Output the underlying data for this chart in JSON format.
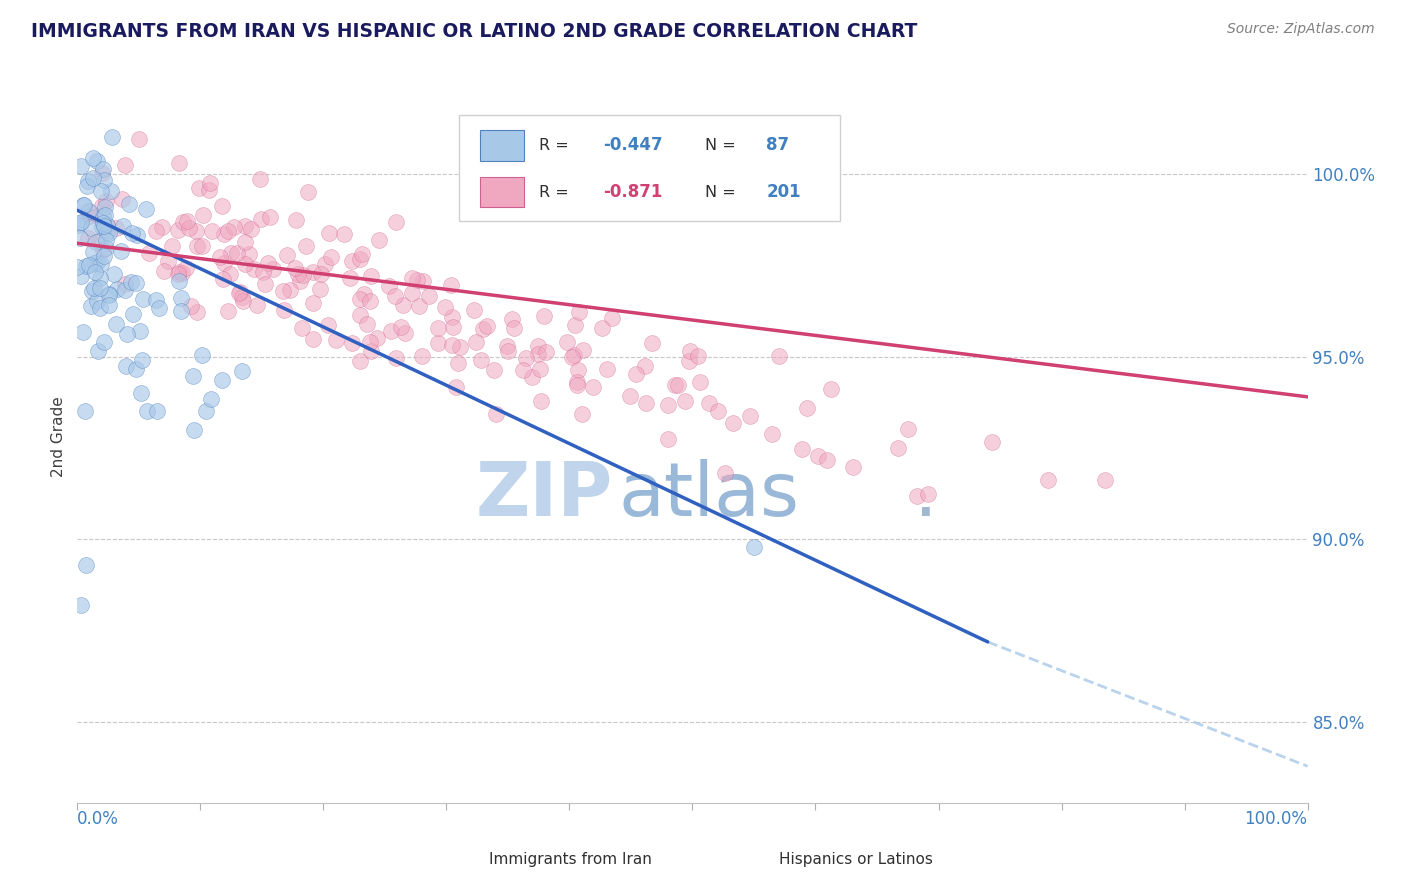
{
  "title": "IMMIGRANTS FROM IRAN VS HISPANIC OR LATINO 2ND GRADE CORRELATION CHART",
  "source": "Source: ZipAtlas.com",
  "ylabel": "2nd Grade",
  "blue_scatter_color": "#a8c8e8",
  "pink_scatter_color": "#f0a8c0",
  "blue_line_color": "#3060c0",
  "pink_line_color": "#d04070",
  "blue_dash_color": "#a8c8e8",
  "title_color": "#1a1a5e",
  "source_color": "#808080",
  "axis_label_color": "#4080c0",
  "watermark_zip_color": "#dce8f5",
  "watermark_atlas_color": "#b8d0ea",
  "right_yticks": [
    85.0,
    90.0,
    95.0,
    100.0
  ],
  "xmin": 0.0,
  "xmax": 1.0,
  "ymin": 0.828,
  "ymax": 1.028,
  "N_blue": 87,
  "N_pink": 201,
  "R_blue": -0.447,
  "R_pink": -0.871,
  "blue_line_start_x": 0.0,
  "blue_line_start_y": 0.99,
  "blue_line_solid_end_x": 0.74,
  "blue_line_solid_end_y": 0.872,
  "blue_line_dash_end_x": 1.0,
  "blue_line_dash_end_y": 0.838,
  "pink_line_start_x": 0.0,
  "pink_line_start_y": 0.981,
  "pink_line_end_x": 1.0,
  "pink_line_end_y": 0.939
}
